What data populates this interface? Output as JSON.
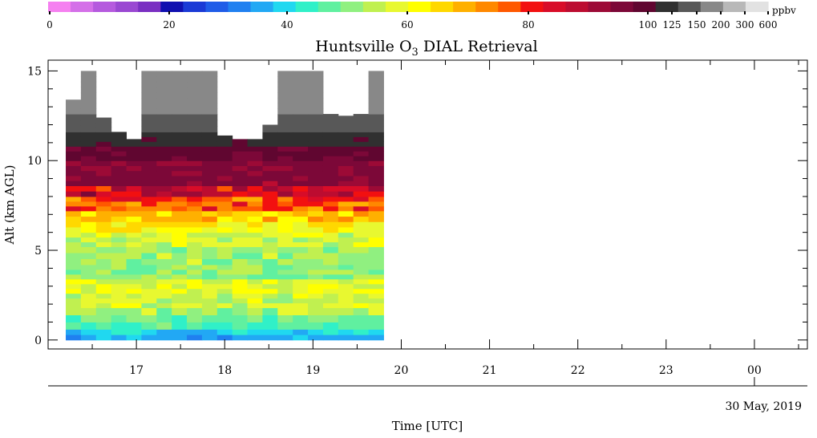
{
  "chart_data": {
    "type": "heatmap",
    "title": "Huntsville O",
    "title_subscript": "3",
    "title_rest": " DIAL Retrieval",
    "xlabel": "Time [UTC]",
    "ylabel": "Alt (km AGL)",
    "date_label": "30 May, 2019",
    "x_tick_labels": [
      "17",
      "18",
      "19",
      "20",
      "21",
      "22",
      "23",
      "00"
    ],
    "x_range_hours": [
      16.0,
      24.6
    ],
    "y_tick_labels": [
      "0",
      "5",
      "10",
      "15"
    ],
    "y_range_km": [
      -0.5,
      15.6
    ],
    "data_time_range_hours": [
      16.2,
      19.8
    ],
    "colorbar": {
      "unit": "ppbv",
      "tick_labels": [
        "0",
        "20",
        "40",
        "60",
        "80",
        "100",
        "125",
        "150",
        "200",
        "300",
        "600"
      ],
      "colors": [
        "#f580f0",
        "#d470e8",
        "#b55ade",
        "#9a48d2",
        "#7a2fc2",
        "#1010b0",
        "#1a3ad6",
        "#1f5ce8",
        "#2080f0",
        "#22a8f4",
        "#20d8f0",
        "#30f0c8",
        "#60f0a0",
        "#90f080",
        "#c0f050",
        "#e8f830",
        "#ffff00",
        "#ffd800",
        "#ffb000",
        "#ff8800",
        "#ff5800",
        "#f21010",
        "#d80c28",
        "#bc0c30",
        "#9c0a36",
        "#7c0838",
        "#600630",
        "#303030",
        "#585858",
        "#888888",
        "#b8b8b8",
        "#e2e2e2"
      ]
    },
    "profile_levels": [
      {
        "altitude_range_km": [
          0.0,
          0.3
        ],
        "ozone_ppbv": 38
      },
      {
        "altitude_range_km": [
          0.3,
          0.6
        ],
        "ozone_ppbv": 42
      },
      {
        "altitude_range_km": [
          0.6,
          1.0
        ],
        "ozone_ppbv": 48
      },
      {
        "altitude_range_km": [
          1.0,
          1.4
        ],
        "ozone_ppbv": 52
      },
      {
        "altitude_range_km": [
          1.4,
          1.8
        ],
        "ozone_ppbv": 56
      },
      {
        "altitude_range_km": [
          1.8,
          2.6
        ],
        "ozone_ppbv": 60
      },
      {
        "altitude_range_km": [
          2.6,
          3.4
        ],
        "ozone_ppbv": 62
      },
      {
        "altitude_range_km": [
          3.4,
          4.2
        ],
        "ozone_ppbv": 54
      },
      {
        "altitude_range_km": [
          4.2,
          5.2
        ],
        "ozone_ppbv": 56
      },
      {
        "altitude_range_km": [
          5.2,
          6.0
        ],
        "ozone_ppbv": 60
      },
      {
        "altitude_range_km": [
          6.0,
          6.6
        ],
        "ozone_ppbv": 66
      },
      {
        "altitude_range_km": [
          6.6,
          7.2
        ],
        "ozone_ppbv": 72
      },
      {
        "altitude_range_km": [
          7.2,
          8.0
        ],
        "ozone_ppbv": 82
      },
      {
        "altitude_range_km": [
          8.0,
          8.6
        ],
        "ozone_ppbv": 92
      },
      {
        "altitude_range_km": [
          8.6,
          10.0
        ],
        "ozone_ppbv": 105
      },
      {
        "altitude_range_km": [
          10.0,
          10.8
        ],
        "ozone_ppbv": 130
      },
      {
        "altitude_range_km": [
          10.8,
          11.6
        ],
        "ozone_ppbv": 160
      },
      {
        "altitude_range_km": [
          11.6,
          12.6
        ],
        "ozone_ppbv": 220
      },
      {
        "altitude_range_km": [
          12.6,
          15.0
        ],
        "ozone_ppbv": 400
      }
    ]
  }
}
